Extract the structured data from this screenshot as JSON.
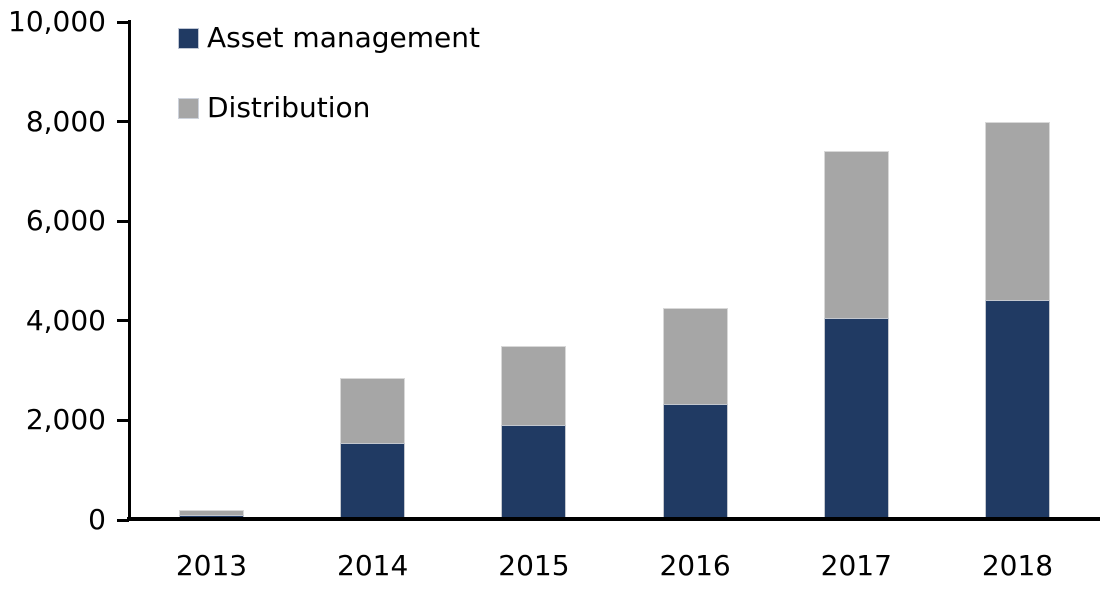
{
  "chart_data": {
    "type": "bar",
    "stacked": true,
    "title": "",
    "categories": [
      "2013",
      "2014",
      "2015",
      "2016",
      "2017",
      "2018"
    ],
    "series": [
      {
        "name": "Asset management",
        "color": "#203A63",
        "values": [
          100,
          1550,
          1900,
          2320,
          4050,
          4420
        ]
      },
      {
        "name": "Distribution",
        "color": "#A6A6A6",
        "values": [
          100,
          1300,
          1600,
          1930,
          3350,
          3580
        ]
      }
    ],
    "totals": [
      200,
      2850,
      3500,
      4250,
      7400,
      8000
    ],
    "xlabel": "",
    "ylabel": "",
    "ylim": [
      0,
      10000
    ],
    "yticks": [
      0,
      2000,
      4000,
      6000,
      8000,
      10000
    ],
    "ytick_labels": [
      "0",
      "2,000",
      "4,000",
      "6,000",
      "8,000",
      "10,000"
    ],
    "legend_position": "top-left",
    "legend_entries": [
      "Asset management",
      "Distribution"
    ],
    "grid": false,
    "axis_color": "#000000",
    "text_color": "#000000",
    "background": "#FFFFFF"
  }
}
